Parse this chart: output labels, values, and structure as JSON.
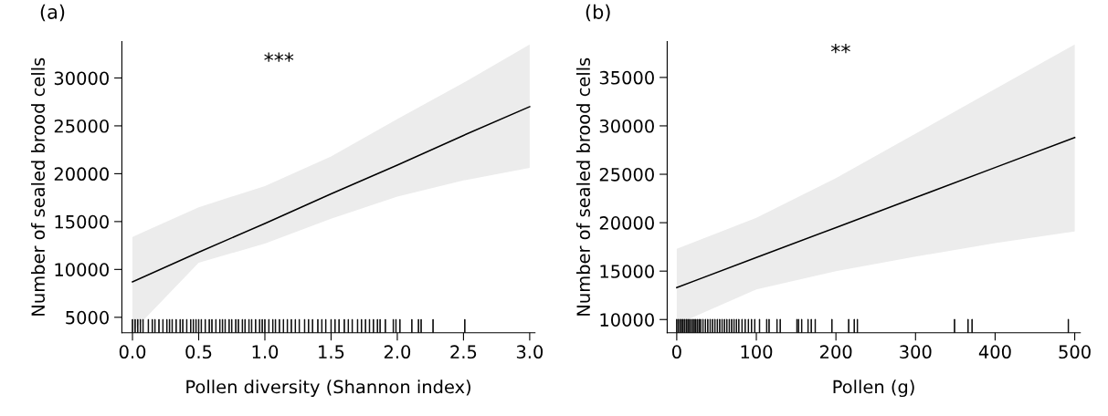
{
  "chart_data": [
    {
      "type": "line",
      "title": "(a)",
      "xlabel": "Pollen diversity (Shannon index)",
      "ylabel": "Number of sealed brood cells",
      "annotations": [
        "***"
      ],
      "xlim": [
        -0.08,
        3.04
      ],
      "ylim": [
        3380,
        33800
      ],
      "xticks": [
        {
          "value": 0,
          "label": "0.0"
        },
        {
          "value": 0.5,
          "label": "0.5"
        },
        {
          "value": 1,
          "label": "1.0"
        },
        {
          "value": 1.5,
          "label": "1.5"
        },
        {
          "value": 2,
          "label": "2.0"
        },
        {
          "value": 2.5,
          "label": "2.5"
        },
        {
          "value": 3,
          "label": "3.0"
        }
      ],
      "yticks": [
        5000,
        10000,
        15000,
        20000,
        25000,
        30000
      ],
      "series": [
        {
          "color": "#000000",
          "x": [
            0,
            0.5,
            1,
            1.5,
            2,
            2.5,
            3
          ],
          "values": [
            8700,
            11800,
            14800,
            17900,
            20900,
            24000,
            27000
          ],
          "lower": [
            3500,
            10700,
            12700,
            15300,
            17600,
            19300,
            20600
          ],
          "upper": [
            13400,
            16500,
            18700,
            21800,
            25700,
            29500,
            33500
          ]
        },
        {
          "type": "bar",
          "color": "#000000",
          "x": [
            0,
            0.02,
            0.04,
            0.06,
            0.08,
            0.12,
            0.15,
            0.17,
            0.2,
            0.23,
            0.26,
            0.28,
            0.3,
            0.33,
            0.36,
            0.38,
            0.41,
            0.44,
            0.46,
            0.48,
            0.5,
            0.52,
            0.55,
            0.58,
            0.6,
            0.63,
            0.66,
            0.68,
            0.7,
            0.73,
            0.75,
            0.78,
            0.8,
            0.83,
            0.85,
            0.88,
            0.9,
            0.93,
            0.96,
            0.98,
            1.0,
            1.03,
            1.06,
            1.08,
            1.11,
            1.14,
            1.17,
            1.2,
            1.23,
            1.26,
            1.3,
            1.33,
            1.36,
            1.4,
            1.43,
            1.46,
            1.5,
            1.53,
            1.56,
            1.6,
            1.63,
            1.66,
            1.7,
            1.73,
            1.76,
            1.79,
            1.82,
            1.85,
            1.87,
            1.91,
            1.97,
            1.99,
            2.02,
            2.11,
            2.16,
            2.18,
            2.27,
            2.51
          ],
          "base": [
            3380,
            3380,
            3380,
            3380,
            3380,
            3380,
            3380,
            3380,
            3380,
            3380,
            3380,
            3380,
            3380,
            3380,
            3380,
            3380,
            3380,
            3380,
            3380,
            3380,
            3380,
            3380,
            3380,
            3380,
            3380,
            3380,
            3380,
            3380,
            3380,
            3380,
            3380,
            3380,
            3380,
            3380,
            3380,
            3380,
            3380,
            3380,
            3380,
            3380,
            3380,
            3380,
            3380,
            3380,
            3380,
            3380,
            3380,
            3380,
            3380,
            3380,
            3380,
            3380,
            3380,
            3380,
            3380,
            3380,
            3380,
            3380,
            3380,
            3380,
            3380,
            3380,
            3380,
            3380,
            3380,
            3380,
            3380,
            3380,
            3380,
            3380,
            3380,
            3380,
            3380,
            3380,
            3380,
            3380,
            3380,
            3380
          ],
          "values": [
            1400,
            1400,
            1400,
            1400,
            1400,
            1400,
            1400,
            1400,
            1400,
            1400,
            1400,
            1400,
            1400,
            1400,
            1400,
            1400,
            1400,
            1400,
            1400,
            1400,
            1400,
            1400,
            1400,
            1400,
            1400,
            1400,
            1400,
            1400,
            1400,
            1400,
            1400,
            1400,
            1400,
            1400,
            1400,
            1400,
            1400,
            1400,
            1400,
            1400,
            1400,
            1400,
            1400,
            1400,
            1400,
            1400,
            1400,
            1400,
            1400,
            1400,
            1400,
            1400,
            1400,
            1400,
            1400,
            1400,
            1400,
            1400,
            1400,
            1400,
            1400,
            1400,
            1400,
            1400,
            1400,
            1400,
            1400,
            1400,
            1400,
            1400,
            1400,
            1400,
            1400,
            1400,
            1400,
            1400,
            1400,
            1400
          ]
        }
      ]
    },
    {
      "type": "line",
      "title": "(b)",
      "xlabel": "Pollen (g)",
      "ylabel": "Number of sealed brood cells",
      "annotations": [
        "**"
      ],
      "xlim": [
        -12,
        507
      ],
      "ylim": [
        8630,
        38700
      ],
      "xticks": [
        0,
        100,
        200,
        300,
        400,
        500
      ],
      "yticks": [
        10000,
        15000,
        20000,
        25000,
        30000,
        35000
      ],
      "series": [
        {
          "color": "#000000",
          "x": [
            0,
            100,
            200,
            300,
            400,
            500
          ],
          "values": [
            13300,
            16400,
            19500,
            22600,
            25700,
            28800
          ],
          "lower": [
            9500,
            13100,
            15000,
            16500,
            17900,
            19100
          ],
          "upper": [
            17300,
            20500,
            24600,
            29200,
            33800,
            38400
          ]
        },
        {
          "type": "bar",
          "color": "#000000",
          "x": [
            0,
            2,
            4,
            6,
            8,
            10,
            12,
            14,
            16,
            18,
            20,
            22,
            24,
            26,
            28,
            30,
            33,
            36,
            39,
            42,
            45,
            48,
            51,
            54,
            57,
            60,
            63,
            66,
            69,
            72,
            75,
            78,
            82,
            86,
            90,
            94,
            98,
            104,
            113,
            116,
            126,
            130,
            151,
            153,
            157,
            165,
            169,
            174,
            195,
            216,
            223,
            227,
            349,
            366,
            371,
            492
          ],
          "base": [
            8630,
            8630,
            8630,
            8630,
            8630,
            8630,
            8630,
            8630,
            8630,
            8630,
            8630,
            8630,
            8630,
            8630,
            8630,
            8630,
            8630,
            8630,
            8630,
            8630,
            8630,
            8630,
            8630,
            8630,
            8630,
            8630,
            8630,
            8630,
            8630,
            8630,
            8630,
            8630,
            8630,
            8630,
            8630,
            8630,
            8630,
            8630,
            8630,
            8630,
            8630,
            8630,
            8630,
            8630,
            8630,
            8630,
            8630,
            8630,
            8630,
            8630,
            8630,
            8630,
            8630,
            8630,
            8630,
            8630
          ],
          "values": [
            1400,
            1400,
            1400,
            1400,
            1400,
            1400,
            1400,
            1400,
            1400,
            1400,
            1400,
            1400,
            1400,
            1400,
            1400,
            1400,
            1400,
            1400,
            1400,
            1400,
            1400,
            1400,
            1400,
            1400,
            1400,
            1400,
            1400,
            1400,
            1400,
            1400,
            1400,
            1400,
            1400,
            1400,
            1400,
            1400,
            1400,
            1400,
            1400,
            1400,
            1400,
            1400,
            1400,
            1400,
            1400,
            1400,
            1400,
            1400,
            1400,
            1400,
            1400,
            1400,
            1400,
            1400,
            1400,
            1400
          ]
        }
      ]
    }
  ]
}
